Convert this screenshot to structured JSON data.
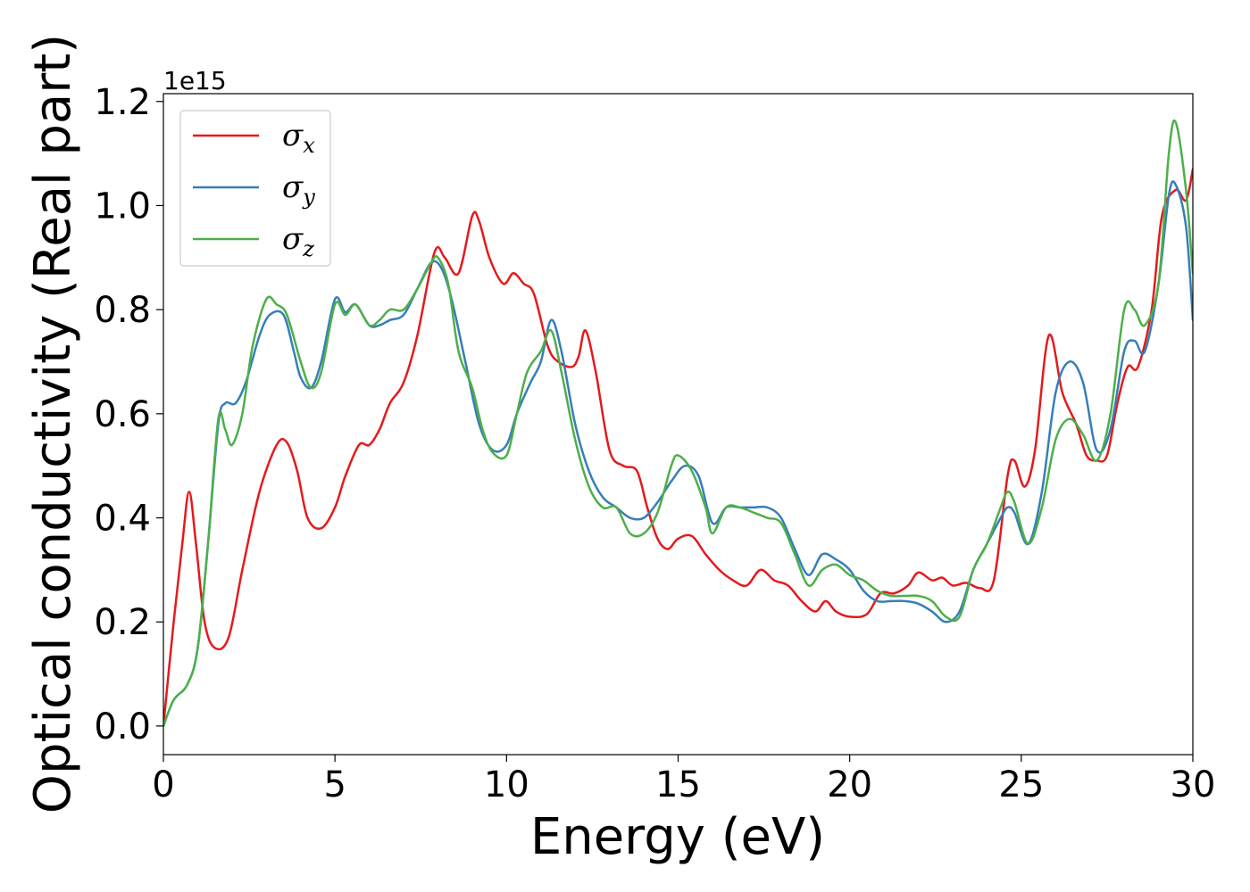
{
  "chart_data": {
    "type": "line",
    "title": "",
    "xlabel": "Energy (eV)",
    "ylabel": "Optical conductivity (Real part)",
    "y_offset_label": "1e15",
    "xlim": [
      0,
      30
    ],
    "ylim": [
      -0.055,
      1.215
    ],
    "xticks": [
      0,
      5,
      10,
      15,
      20,
      25,
      30
    ],
    "xtick_labels": [
      "0",
      "5",
      "10",
      "15",
      "20",
      "25",
      "30"
    ],
    "yticks": [
      0.0,
      0.2,
      0.4,
      0.6,
      0.8,
      1.0,
      1.2
    ],
    "ytick_labels": [
      "0.0",
      "0.2",
      "0.4",
      "0.6",
      "0.8",
      "1.0",
      "1.2"
    ],
    "grid": false,
    "legend_position": "top-left",
    "series": [
      {
        "name": "σx",
        "legend_symbol": "σ",
        "legend_subscript": "x",
        "color": "#e41a1c",
        "x": [
          0,
          0.3,
          0.55,
          0.75,
          0.95,
          1.2,
          1.5,
          1.9,
          2.3,
          2.8,
          3.3,
          3.6,
          3.9,
          4.2,
          4.6,
          5.0,
          5.3,
          5.7,
          6.0,
          6.3,
          6.6,
          7.0,
          7.4,
          7.9,
          8.2,
          8.6,
          9.0,
          9.2,
          9.5,
          9.9,
          10.2,
          10.5,
          10.8,
          11.2,
          11.5,
          11.9,
          12.1,
          12.3,
          12.6,
          13.0,
          13.4,
          13.8,
          14.1,
          14.4,
          14.7,
          15.0,
          15.4,
          15.8,
          16.2,
          16.6,
          17.0,
          17.4,
          17.8,
          18.2,
          18.6,
          19.0,
          19.3,
          19.6,
          20.0,
          20.5,
          20.9,
          21.3,
          21.7,
          22.0,
          22.4,
          22.7,
          23.0,
          23.4,
          23.8,
          24.2,
          24.6,
          24.8,
          25.1,
          25.4,
          25.8,
          26.2,
          26.6,
          26.9,
          27.2,
          27.5,
          27.8,
          28.1,
          28.4,
          28.8,
          29.1,
          29.5,
          29.8,
          30.0
        ],
        "values": [
          0.0,
          0.2,
          0.35,
          0.45,
          0.35,
          0.2,
          0.15,
          0.17,
          0.3,
          0.45,
          0.54,
          0.545,
          0.49,
          0.4,
          0.38,
          0.42,
          0.48,
          0.54,
          0.54,
          0.57,
          0.62,
          0.66,
          0.75,
          0.91,
          0.9,
          0.87,
          0.98,
          0.97,
          0.9,
          0.85,
          0.87,
          0.85,
          0.83,
          0.73,
          0.7,
          0.69,
          0.71,
          0.76,
          0.68,
          0.53,
          0.5,
          0.49,
          0.42,
          0.36,
          0.34,
          0.36,
          0.365,
          0.33,
          0.3,
          0.28,
          0.27,
          0.3,
          0.28,
          0.27,
          0.24,
          0.22,
          0.24,
          0.22,
          0.21,
          0.215,
          0.255,
          0.255,
          0.27,
          0.295,
          0.28,
          0.285,
          0.27,
          0.275,
          0.265,
          0.28,
          0.48,
          0.51,
          0.46,
          0.53,
          0.75,
          0.64,
          0.58,
          0.52,
          0.51,
          0.52,
          0.62,
          0.69,
          0.69,
          0.8,
          0.98,
          1.03,
          1.01,
          1.07
        ]
      },
      {
        "name": "σy",
        "legend_symbol": "σ",
        "legend_subscript": "y",
        "color": "#377eb8",
        "x": [
          0,
          0.3,
          0.7,
          1.0,
          1.3,
          1.6,
          1.8,
          2.1,
          2.4,
          2.8,
          3.1,
          3.5,
          3.8,
          4.0,
          4.3,
          4.6,
          5.0,
          5.3,
          5.6,
          6.0,
          6.3,
          6.6,
          7.0,
          7.4,
          7.8,
          8.1,
          8.4,
          8.8,
          9.2,
          9.6,
          10.0,
          10.3,
          10.7,
          11.0,
          11.3,
          11.6,
          12.0,
          12.4,
          12.8,
          13.2,
          13.6,
          14.0,
          14.4,
          14.8,
          15.2,
          15.6,
          16.0,
          16.4,
          16.8,
          17.2,
          17.6,
          18.0,
          18.4,
          18.8,
          19.2,
          19.6,
          20.0,
          20.4,
          20.8,
          21.2,
          21.6,
          22.0,
          22.4,
          22.8,
          23.2,
          23.6,
          24.0,
          24.4,
          24.6,
          24.8,
          25.2,
          25.6,
          26.0,
          26.4,
          26.8,
          27.2,
          27.6,
          28.0,
          28.3,
          28.6,
          29.0,
          29.3,
          29.5,
          29.8,
          30.0
        ],
        "values": [
          0.0,
          0.05,
          0.08,
          0.15,
          0.35,
          0.58,
          0.62,
          0.62,
          0.66,
          0.75,
          0.79,
          0.79,
          0.72,
          0.67,
          0.65,
          0.7,
          0.82,
          0.795,
          0.81,
          0.77,
          0.77,
          0.78,
          0.79,
          0.84,
          0.89,
          0.88,
          0.82,
          0.7,
          0.58,
          0.53,
          0.54,
          0.6,
          0.66,
          0.7,
          0.78,
          0.72,
          0.58,
          0.49,
          0.44,
          0.42,
          0.4,
          0.4,
          0.43,
          0.47,
          0.5,
          0.48,
          0.39,
          0.42,
          0.42,
          0.42,
          0.42,
          0.4,
          0.34,
          0.29,
          0.33,
          0.32,
          0.3,
          0.26,
          0.24,
          0.24,
          0.24,
          0.235,
          0.22,
          0.2,
          0.22,
          0.3,
          0.35,
          0.4,
          0.42,
          0.41,
          0.35,
          0.45,
          0.64,
          0.7,
          0.66,
          0.53,
          0.57,
          0.72,
          0.74,
          0.72,
          0.85,
          1.02,
          1.04,
          0.96,
          0.78
        ]
      },
      {
        "name": "σz",
        "legend_symbol": "σ",
        "legend_subscript": "z",
        "color": "#4daf4a",
        "x": [
          0,
          0.3,
          0.7,
          1.0,
          1.3,
          1.6,
          1.8,
          2.0,
          2.3,
          2.6,
          3.0,
          3.3,
          3.6,
          4.0,
          4.3,
          4.6,
          5.0,
          5.3,
          5.6,
          6.0,
          6.3,
          6.6,
          7.0,
          7.4,
          7.8,
          8.0,
          8.3,
          8.6,
          9.0,
          9.3,
          9.6,
          10.0,
          10.3,
          10.6,
          11.0,
          11.3,
          11.6,
          12.0,
          12.4,
          12.8,
          13.2,
          13.6,
          14.0,
          14.4,
          14.8,
          15.0,
          15.4,
          15.8,
          16.0,
          16.4,
          16.8,
          17.2,
          17.6,
          18.0,
          18.4,
          18.8,
          19.2,
          19.6,
          20.0,
          20.4,
          20.8,
          21.2,
          21.6,
          22.0,
          22.4,
          22.8,
          23.2,
          23.6,
          24.0,
          24.4,
          24.6,
          24.8,
          25.2,
          25.6,
          26.0,
          26.4,
          26.8,
          27.2,
          27.6,
          28.0,
          28.3,
          28.6,
          29.0,
          29.3,
          29.5,
          29.8,
          30.0
        ],
        "values": [
          0.0,
          0.05,
          0.08,
          0.15,
          0.35,
          0.59,
          0.57,
          0.54,
          0.6,
          0.73,
          0.82,
          0.81,
          0.79,
          0.7,
          0.65,
          0.68,
          0.81,
          0.79,
          0.81,
          0.77,
          0.78,
          0.8,
          0.8,
          0.84,
          0.89,
          0.9,
          0.85,
          0.72,
          0.65,
          0.57,
          0.525,
          0.52,
          0.6,
          0.68,
          0.72,
          0.76,
          0.68,
          0.55,
          0.46,
          0.42,
          0.42,
          0.37,
          0.37,
          0.41,
          0.5,
          0.52,
          0.49,
          0.42,
          0.37,
          0.42,
          0.42,
          0.41,
          0.4,
          0.39,
          0.33,
          0.27,
          0.3,
          0.31,
          0.29,
          0.28,
          0.26,
          0.25,
          0.25,
          0.25,
          0.24,
          0.21,
          0.21,
          0.3,
          0.35,
          0.42,
          0.45,
          0.43,
          0.35,
          0.42,
          0.55,
          0.59,
          0.56,
          0.51,
          0.6,
          0.8,
          0.8,
          0.77,
          0.85,
          1.1,
          1.16,
          1.03,
          0.87
        ]
      }
    ]
  }
}
